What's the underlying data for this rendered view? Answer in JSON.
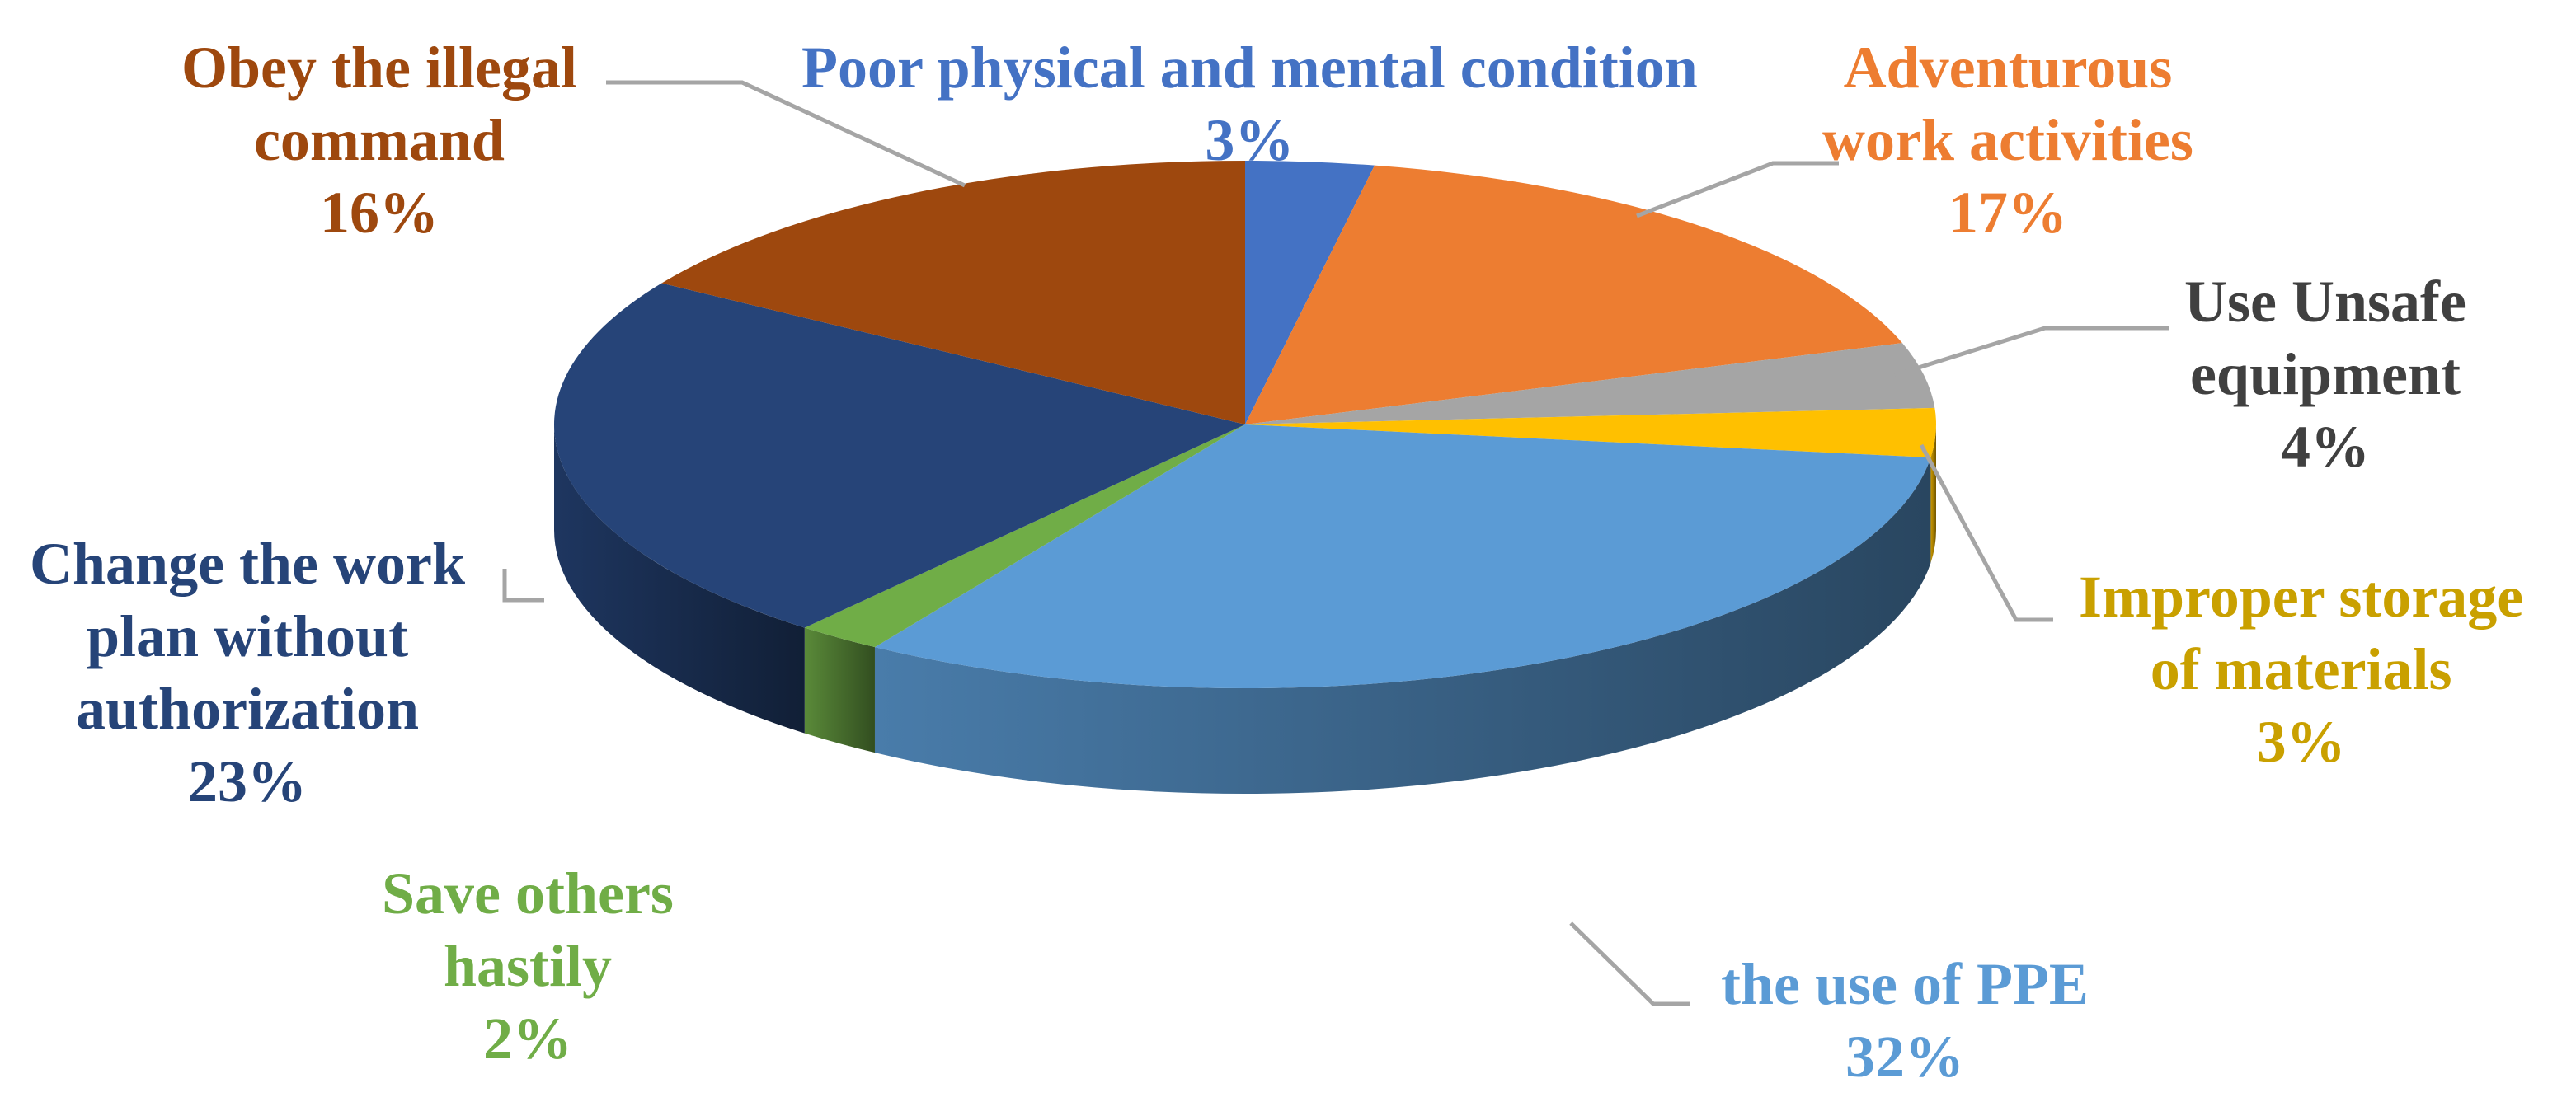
{
  "chart_data": {
    "type": "pie",
    "title": "",
    "style": "3d-exploded-none",
    "slices": [
      {
        "label_lines": [
          "Poor physical and mental condition"
        ],
        "value": 3,
        "value_label": "3%",
        "color": "#4472C4",
        "label_color": "#4472C4"
      },
      {
        "label_lines": [
          "Adventurous",
          "work activities"
        ],
        "value": 17,
        "value_label": "17%",
        "color": "#ED7D31",
        "label_color": "#ED7D31"
      },
      {
        "label_lines": [
          "Use Unsafe",
          "equipment"
        ],
        "value": 4,
        "value_label": "4%",
        "color": "#A5A5A5",
        "label_color": "#404040"
      },
      {
        "label_lines": [
          "Improper storage",
          "of materials"
        ],
        "value": 3,
        "value_label": "3%",
        "color": "#FFC000",
        "label_color": "#C9A000"
      },
      {
        "label_lines": [
          "the use of PPE"
        ],
        "value": 32,
        "value_label": "32%",
        "color": "#5B9BD5",
        "label_color": "#5B9BD5"
      },
      {
        "label_lines": [
          "Save others",
          "hastily"
        ],
        "value": 2,
        "value_label": "2%",
        "color": "#70AD47",
        "label_color": "#70AD47"
      },
      {
        "label_lines": [
          "Change the work",
          "plan without",
          "authorization"
        ],
        "value": 23,
        "value_label": "23%",
        "color": "#264478",
        "label_color": "#264478"
      },
      {
        "label_lines": [
          "Obey the illegal",
          "command"
        ],
        "value": 16,
        "value_label": "16%",
        "color": "#9E480E",
        "label_color": "#9E480E"
      }
    ]
  }
}
